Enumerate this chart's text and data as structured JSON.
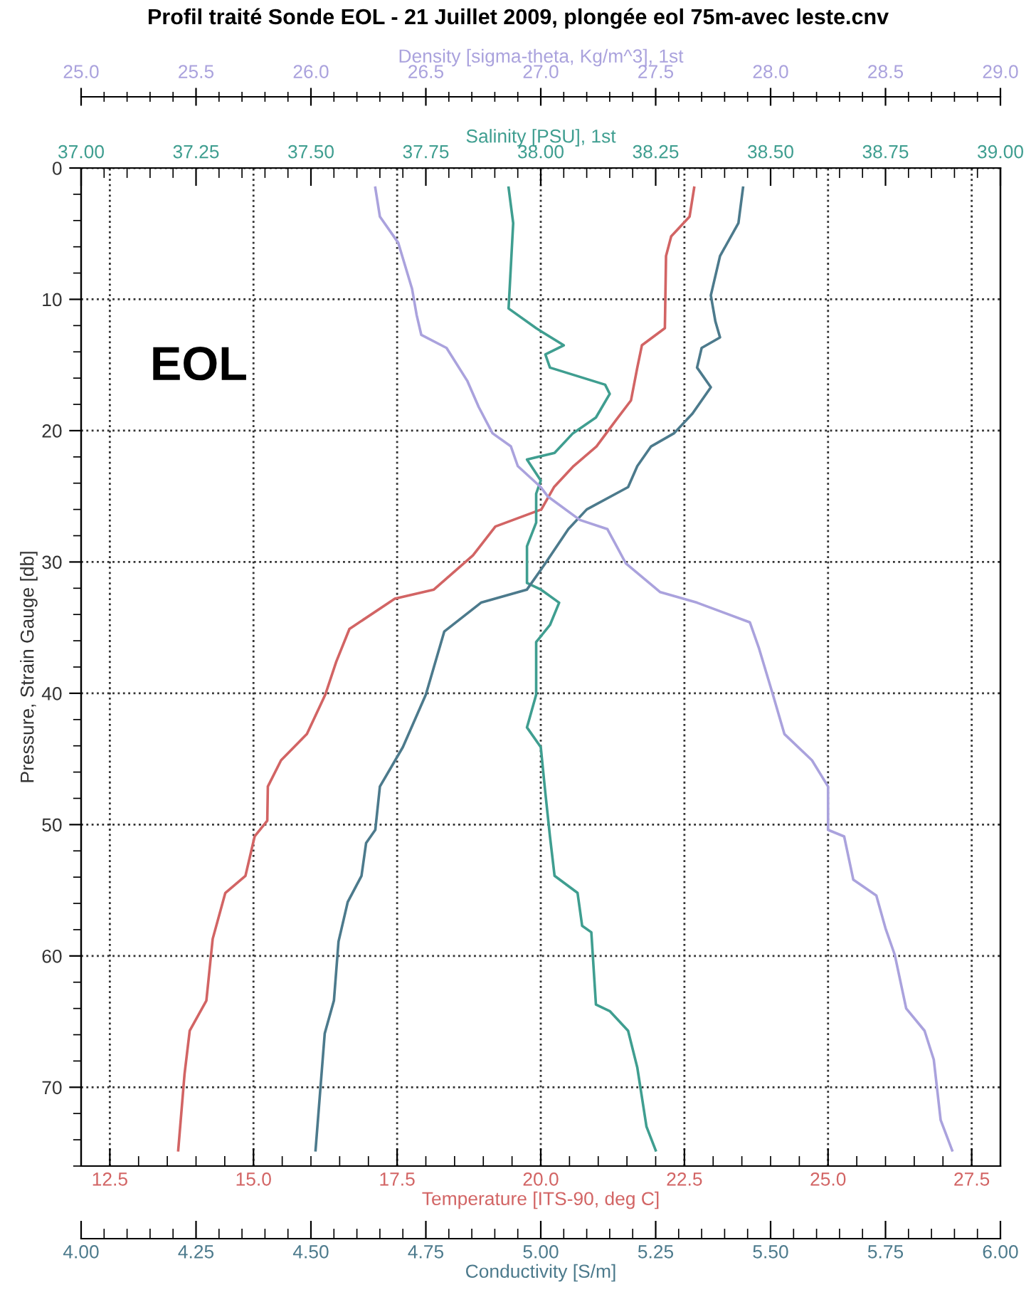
{
  "chart_data": [
    {
      "type": "line",
      "title": "Profil traité Sonde EOL - 21 Juillet 2009, plongée eol 75m-avec leste.cnv",
      "xlabel": "Temperature [ITS-90, deg C]",
      "x2label": "Salinity [PSU], 1st",
      "ylabel": "Pressure, Strain Gauge [db]",
      "xlim": [
        12,
        28
      ],
      "xticks": [
        12.5,
        {
          "value": 15,
          "label": "15.0"
        },
        17.5,
        {
          "value": 20,
          "label": "20.0"
        },
        22.5,
        {
          "value": 25,
          "label": "25.0"
        },
        27.5
      ],
      "x2lim": [
        37,
        39
      ],
      "x2ticks": [
        {
          "value": 37,
          "label": "37.00"
        },
        37.25,
        {
          "value": 37.5,
          "label": "37.50"
        },
        37.75,
        {
          "value": 38,
          "label": "38.00"
        },
        38.25,
        {
          "value": 38.5,
          "label": "38.50"
        },
        38.75,
        {
          "value": 39,
          "label": "39.00"
        }
      ],
      "ylim": [
        76,
        0
      ],
      "yticks": [
        0,
        10,
        20,
        30,
        40,
        50,
        60,
        70
      ],
      "grid": true,
      "annotations": [
        "EOL"
      ],
      "series": [
        {
          "axis": "x2",
          "color": "#3f9e90",
          "x": [
            37.93,
            37.94,
            37.93,
            37.99,
            38.05,
            38.01,
            38.02,
            38.14,
            38.15,
            38.12,
            38.07,
            38.03,
            37.97,
            38.0,
            37.99,
            37.99,
            37.97,
            37.97,
            38.0,
            38.04,
            38.02,
            37.99,
            37.99,
            37.97,
            38.0,
            38.01,
            38.02,
            38.03,
            38.08,
            38.09,
            38.11,
            38.12,
            38.15,
            38.19,
            38.21,
            38.23,
            38.25
          ],
          "values": [
            1.5,
            4.2,
            10.7,
            12.2,
            13.5,
            14.2,
            15.2,
            16.5,
            17.2,
            19.0,
            20.2,
            21.7,
            22.2,
            23.8,
            24.8,
            27.0,
            28.8,
            31.6,
            32.1,
            33.1,
            34.8,
            36.1,
            40.1,
            42.6,
            44.1,
            47.6,
            50.9,
            53.9,
            55.2,
            57.7,
            58.2,
            63.7,
            64.2,
            65.7,
            68.5,
            73.0,
            74.8
          ]
        },
        {
          "color": "#d26464",
          "x": [
            22.67,
            22.59,
            22.27,
            22.18,
            22.16,
            21.76,
            21.68,
            21.57,
            21.31,
            20.97,
            20.57,
            20.23,
            20.01,
            19.21,
            18.82,
            18.14,
            17.46,
            16.67,
            16.44,
            16.25,
            15.93,
            15.48,
            15.25,
            15.24,
            15.02,
            14.86,
            14.51,
            14.29,
            14.18,
            13.89,
            13.8,
            13.69
          ],
          "values": [
            1.5,
            3.7,
            5.2,
            6.7,
            12.2,
            13.5,
            15.2,
            17.7,
            19.2,
            21.2,
            22.7,
            24.3,
            26.0,
            27.3,
            29.5,
            32.1,
            32.8,
            35.1,
            37.6,
            40.1,
            43.1,
            45.1,
            47.1,
            49.7,
            50.9,
            53.9,
            55.2,
            58.7,
            63.4,
            65.7,
            69.0,
            74.8
          ]
        }
      ]
    },
    {
      "type": "line",
      "xlabel": "Conductivity [S/m]",
      "x2label": "Density [sigma-theta, Kg/m^3], 1st",
      "xlim": [
        4,
        6
      ],
      "xticks": [
        {
          "value": 4,
          "label": "4.00"
        },
        4.25,
        {
          "value": 4.5,
          "label": "4.50"
        },
        4.75,
        {
          "value": 5,
          "label": "5.00"
        },
        5.25,
        {
          "value": 5.5,
          "label": "5.50"
        },
        5.75,
        {
          "value": 6,
          "label": "6.00"
        }
      ],
      "x2lim": [
        25,
        29
      ],
      "x2ticks": [
        {
          "value": 25,
          "label": "25.0"
        },
        25.5,
        {
          "value": 26,
          "label": "26.0"
        },
        26.5,
        {
          "value": 27,
          "label": "27.0"
        },
        27.5,
        {
          "value": 28,
          "label": "28.0"
        },
        28.5,
        {
          "value": 29,
          "label": "29.0"
        }
      ],
      "ylim": [
        76,
        0
      ],
      "tick_labels": "x",
      "series": [
        {
          "axis": "x2",
          "color": "#aaa2dd",
          "x": [
            26.28,
            26.3,
            26.38,
            26.44,
            26.46,
            26.48,
            26.59,
            26.68,
            26.73,
            26.79,
            26.87,
            26.9,
            27.0,
            27.03,
            27.17,
            27.29,
            27.37,
            27.52,
            27.68,
            27.91,
            27.95,
            28.01,
            28.06,
            28.18,
            28.25,
            28.25,
            28.32,
            28.36,
            28.46,
            28.5,
            28.54,
            28.59,
            28.67,
            28.71,
            28.74,
            28.79
          ],
          "values": [
            1.5,
            3.7,
            5.7,
            9.2,
            11.2,
            12.7,
            13.7,
            16.2,
            18.2,
            20.2,
            21.2,
            22.7,
            24.3,
            25.0,
            26.8,
            27.5,
            30.1,
            32.3,
            33.1,
            34.6,
            36.6,
            40.1,
            43.1,
            45.1,
            47.1,
            50.4,
            50.9,
            54.2,
            55.4,
            57.9,
            59.9,
            64.0,
            65.7,
            67.9,
            72.5,
            74.8
          ]
        },
        {
          "color": "#4c7a8c",
          "x": [
            5.44,
            5.43,
            5.39,
            5.37,
            5.38,
            5.39,
            5.35,
            5.34,
            5.37,
            5.33,
            5.29,
            5.24,
            5.21,
            5.19,
            5.1,
            5.06,
            5.01,
            4.97,
            4.87,
            4.79,
            4.75,
            4.7,
            4.65,
            4.64,
            4.62,
            4.61,
            4.58,
            4.56,
            4.55,
            4.53,
            4.51
          ],
          "values": [
            1.5,
            4.2,
            6.7,
            9.7,
            11.7,
            12.9,
            13.7,
            15.2,
            16.7,
            18.7,
            20.2,
            21.2,
            22.7,
            24.3,
            26.0,
            27.5,
            30.1,
            32.1,
            33.1,
            35.3,
            40.1,
            44.1,
            47.1,
            50.4,
            51.4,
            53.9,
            55.9,
            58.9,
            63.4,
            65.9,
            74.8
          ]
        }
      ]
    }
  ]
}
